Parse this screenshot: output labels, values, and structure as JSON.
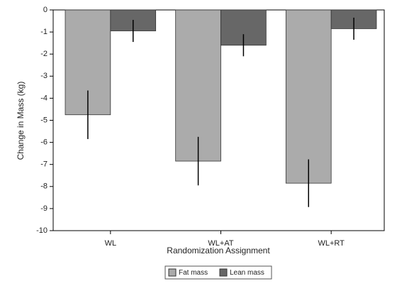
{
  "chart_data": {
    "type": "bar",
    "xlabel": "Randomization Assignment",
    "ylabel": "Change in Mass (kg)",
    "categories": [
      "WL",
      "WL+AT",
      "WL+RT"
    ],
    "series": [
      {
        "name": "Fat mass",
        "color": "#ababab",
        "values": [
          -4.75,
          -6.85,
          -7.85
        ],
        "errors": [
          1.1,
          1.1,
          1.08
        ]
      },
      {
        "name": "Lean mass",
        "color": "#676767",
        "values": [
          -0.95,
          -1.6,
          -0.85
        ],
        "errors": [
          0.5,
          0.5,
          0.5
        ]
      }
    ],
    "ylim": [
      -10,
      0
    ],
    "yticks": [
      0,
      -1,
      -2,
      -3,
      -4,
      -5,
      -6,
      -7,
      -8,
      -9,
      -10
    ],
    "legend": "bottom"
  }
}
